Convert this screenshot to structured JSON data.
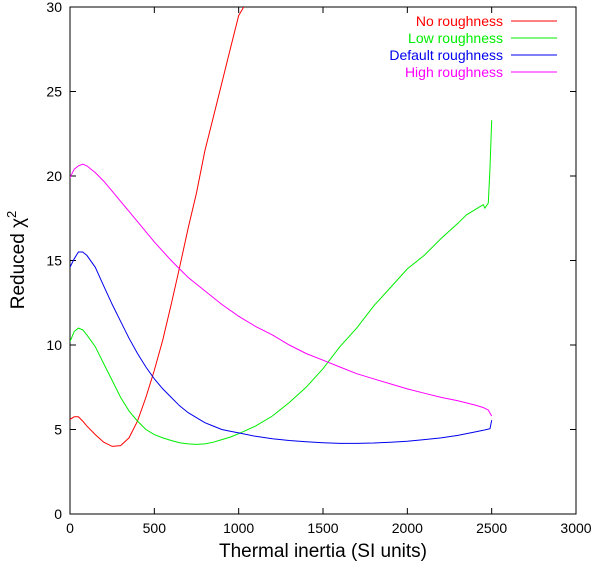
{
  "chart_data": {
    "type": "line",
    "title": "",
    "xlabel": "Thermal inertia (SI units)",
    "ylabel_main": "Reduced χ",
    "ylabel_sup": "2",
    "xlim": [
      0,
      3000
    ],
    "ylim": [
      0,
      30
    ],
    "xticks": [
      0,
      500,
      1000,
      1500,
      2000,
      2500,
      3000
    ],
    "yticks": [
      0,
      5,
      10,
      15,
      20,
      25,
      30
    ],
    "grid": false,
    "legend_position": "top-right",
    "series": [
      {
        "name": "No roughness",
        "color": "#ff0000",
        "x": [
          0,
          25,
          50,
          75,
          100,
          150,
          200,
          250,
          300,
          350,
          400,
          450,
          500,
          550,
          600,
          650,
          700,
          750,
          800,
          850,
          900,
          950,
          1000,
          1030
        ],
        "y": [
          5.6,
          5.75,
          5.75,
          5.5,
          5.2,
          4.7,
          4.25,
          4.0,
          4.05,
          4.5,
          5.5,
          6.9,
          8.5,
          10.3,
          12.4,
          14.6,
          16.9,
          19.0,
          21.5,
          23.5,
          25.5,
          27.5,
          29.5,
          30.0
        ]
      },
      {
        "name": "Low roughness",
        "color": "#00ee00",
        "x": [
          0,
          25,
          50,
          75,
          100,
          150,
          200,
          250,
          300,
          350,
          400,
          450,
          500,
          550,
          600,
          650,
          700,
          750,
          800,
          850,
          900,
          950,
          1000,
          1100,
          1200,
          1300,
          1400,
          1500,
          1600,
          1700,
          1800,
          1900,
          2000,
          2100,
          2200,
          2300,
          2350,
          2400,
          2450,
          2460,
          2480,
          2490,
          2500
        ],
        "y": [
          10.2,
          10.8,
          11.0,
          10.9,
          10.6,
          9.9,
          8.9,
          7.9,
          6.9,
          6.1,
          5.5,
          5.0,
          4.7,
          4.5,
          4.35,
          4.22,
          4.15,
          4.12,
          4.15,
          4.25,
          4.4,
          4.55,
          4.75,
          5.2,
          5.8,
          6.6,
          7.5,
          8.6,
          9.9,
          11.0,
          12.3,
          13.4,
          14.5,
          15.3,
          16.3,
          17.2,
          17.7,
          18.0,
          18.3,
          18.1,
          18.4,
          20.5,
          23.3
        ]
      },
      {
        "name": "Default roughness",
        "color": "#0000ee",
        "x": [
          0,
          25,
          50,
          75,
          100,
          150,
          200,
          250,
          300,
          350,
          400,
          450,
          500,
          550,
          600,
          650,
          700,
          750,
          800,
          850,
          900,
          950,
          1000,
          1100,
          1200,
          1300,
          1400,
          1500,
          1600,
          1700,
          1800,
          1900,
          2000,
          2100,
          2200,
          2300,
          2400,
          2450,
          2470,
          2490,
          2500
        ],
        "y": [
          14.6,
          15.1,
          15.5,
          15.5,
          15.3,
          14.6,
          13.5,
          12.4,
          11.4,
          10.4,
          9.5,
          8.7,
          8.0,
          7.4,
          6.9,
          6.4,
          6.0,
          5.7,
          5.4,
          5.2,
          5.0,
          4.9,
          4.8,
          4.6,
          4.45,
          4.35,
          4.28,
          4.22,
          4.18,
          4.18,
          4.2,
          4.25,
          4.3,
          4.4,
          4.5,
          4.65,
          4.85,
          4.95,
          5.0,
          5.05,
          5.55
        ]
      },
      {
        "name": "High roughness",
        "color": "#ff00ff",
        "x": [
          0,
          25,
          50,
          75,
          100,
          150,
          200,
          250,
          300,
          400,
          500,
          600,
          700,
          800,
          900,
          1000,
          1100,
          1200,
          1300,
          1400,
          1500,
          1600,
          1700,
          1800,
          1900,
          2000,
          2100,
          2200,
          2300,
          2400,
          2450,
          2480,
          2500
        ],
        "y": [
          19.9,
          20.4,
          20.6,
          20.7,
          20.6,
          20.2,
          19.7,
          19.1,
          18.5,
          17.3,
          16.1,
          15.0,
          14.0,
          13.2,
          12.4,
          11.7,
          11.1,
          10.6,
          10.0,
          9.5,
          9.1,
          8.7,
          8.3,
          8.0,
          7.7,
          7.4,
          7.15,
          6.9,
          6.7,
          6.45,
          6.3,
          6.15,
          5.8
        ]
      }
    ]
  }
}
